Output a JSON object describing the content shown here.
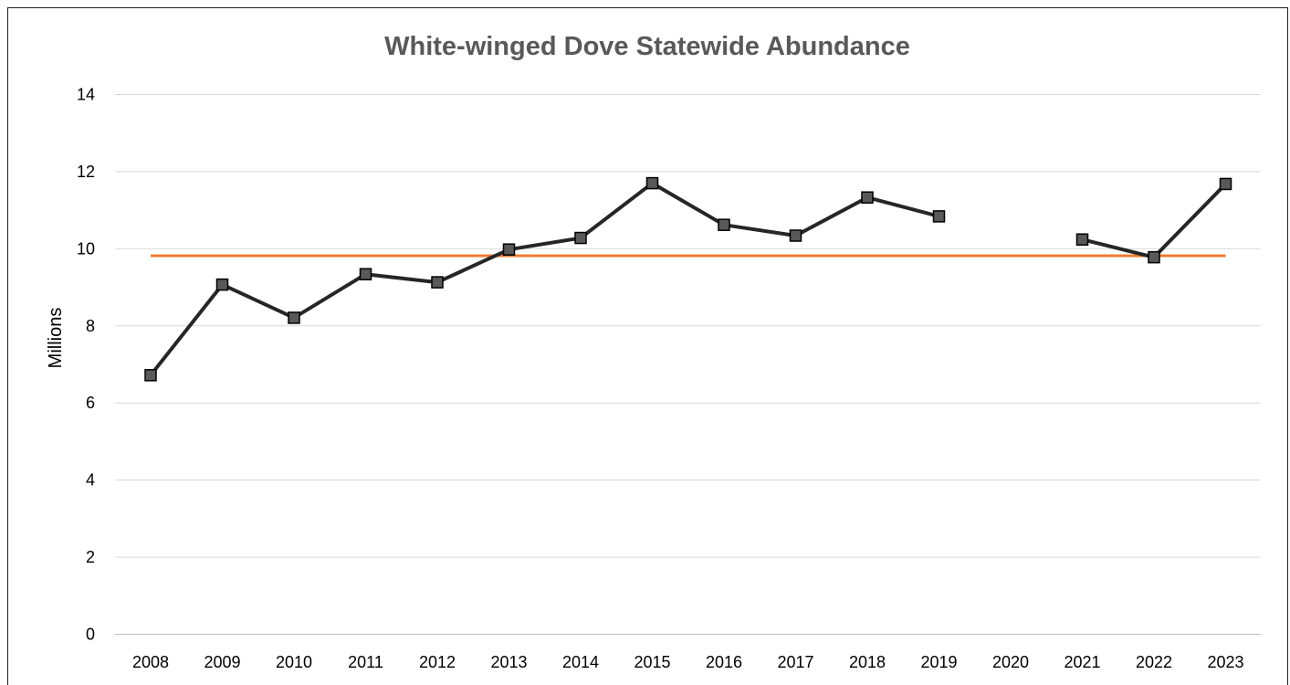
{
  "chart_data": {
    "type": "line",
    "title": "White-winged Dove Statewide Abundance",
    "xlabel": "",
    "ylabel": "Millions",
    "categories": [
      "2008",
      "2009",
      "2010",
      "2011",
      "2012",
      "2013",
      "2014",
      "2015",
      "2016",
      "2017",
      "2018",
      "2019",
      "2020",
      "2021",
      "2022",
      "2023"
    ],
    "ylim": [
      0,
      14
    ],
    "yticks": [
      "0",
      "2",
      "4",
      "6",
      "8",
      "10",
      "12",
      "14"
    ],
    "grid": "horizontal",
    "legend": "none",
    "series": [
      {
        "kind": "line-with-markers",
        "color": "#262626",
        "marker_color": "#595959",
        "values": [
          6.72,
          9.07,
          8.21,
          9.34,
          9.13,
          9.98,
          10.28,
          11.7,
          10.62,
          10.34,
          11.33,
          10.84,
          null,
          10.24,
          9.78,
          11.68
        ]
      },
      {
        "kind": "reference-line",
        "color": "#ED7D31",
        "values": [
          9.82,
          9.82,
          9.82,
          9.82,
          9.82,
          9.82,
          9.82,
          9.82,
          9.82,
          9.82,
          9.82,
          9.82,
          9.82,
          9.82,
          9.82,
          9.82
        ]
      }
    ]
  }
}
